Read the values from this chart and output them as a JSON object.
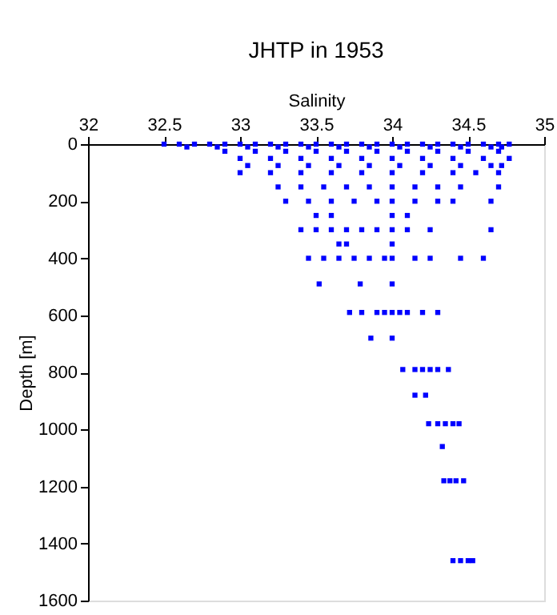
{
  "chart_data": {
    "type": "scatter",
    "title": "JHTP in 1953",
    "xlabel": "Salinity",
    "ylabel": "Depth [m]",
    "xlim": [
      32,
      35
    ],
    "xticks": [
      32,
      32.5,
      33,
      33.5,
      34,
      34.5,
      35
    ],
    "ylim": [
      1600,
      0
    ],
    "yticks": [
      0,
      200,
      400,
      600,
      800,
      1000,
      1200,
      1400,
      1600
    ],
    "marker": "square",
    "grid": false,
    "series": [
      {
        "color": "#0000ff",
        "x": [
          32.5,
          32.6,
          32.7,
          32.8,
          32.9,
          33.0,
          33.1,
          33.2,
          33.3,
          33.4,
          33.5,
          33.6,
          33.7,
          33.8,
          33.9,
          34.0,
          34.1,
          34.2,
          34.3,
          34.4,
          34.5,
          34.6,
          34.7,
          34.77,
          32.65,
          32.85,
          33.05,
          33.25,
          33.45,
          33.65,
          33.85,
          34.05,
          34.25,
          34.45,
          34.65,
          34.72,
          32.9,
          33.1,
          33.3,
          33.5,
          33.7,
          33.9,
          34.1,
          34.3,
          34.5,
          34.7,
          33.0,
          33.2,
          33.4,
          33.6,
          33.8,
          34.0,
          34.2,
          34.4,
          34.6,
          34.77,
          33.05,
          33.25,
          33.45,
          33.65,
          33.85,
          34.05,
          34.25,
          34.45,
          34.65,
          34.72,
          33.0,
          33.2,
          33.4,
          33.6,
          33.8,
          34.0,
          34.2,
          34.4,
          34.55,
          34.7,
          33.25,
          33.4,
          33.55,
          33.7,
          33.85,
          34.0,
          34.15,
          34.3,
          34.45,
          34.7,
          33.3,
          33.45,
          33.6,
          33.75,
          33.9,
          34.0,
          34.15,
          34.3,
          34.4,
          34.65,
          33.5,
          33.6,
          34.0,
          34.1,
          33.4,
          33.5,
          33.6,
          33.7,
          33.8,
          33.9,
          34.0,
          34.1,
          34.25,
          34.65,
          33.65,
          33.7,
          34.0,
          33.45,
          33.55,
          33.65,
          33.75,
          33.85,
          33.95,
          34.0,
          34.15,
          34.25,
          34.45,
          34.6,
          33.52,
          33.79,
          34.0,
          33.72,
          33.8,
          33.9,
          33.95,
          34.0,
          34.05,
          34.1,
          34.2,
          34.3,
          33.86,
          34.0,
          34.07,
          34.15,
          34.2,
          34.25,
          34.3,
          34.37,
          34.15,
          34.22,
          34.24,
          34.3,
          34.35,
          34.4,
          34.44,
          34.33,
          34.34,
          34.38,
          34.42,
          34.47,
          34.4,
          34.45,
          34.5,
          34.53
        ],
        "values": [
          0,
          0,
          0,
          0,
          0,
          0,
          0,
          0,
          0,
          0,
          0,
          0,
          0,
          0,
          0,
          0,
          0,
          0,
          0,
          0,
          0,
          0,
          0,
          0,
          10,
          10,
          10,
          10,
          10,
          10,
          10,
          10,
          10,
          10,
          10,
          10,
          25,
          25,
          25,
          25,
          25,
          25,
          25,
          25,
          25,
          25,
          50,
          50,
          50,
          50,
          50,
          50,
          50,
          50,
          50,
          50,
          75,
          75,
          75,
          75,
          75,
          75,
          75,
          75,
          75,
          75,
          100,
          100,
          100,
          100,
          100,
          100,
          100,
          100,
          100,
          100,
          150,
          150,
          150,
          150,
          150,
          150,
          150,
          150,
          150,
          150,
          200,
          200,
          200,
          200,
          200,
          200,
          200,
          200,
          200,
          200,
          250,
          250,
          250,
          250,
          300,
          300,
          300,
          300,
          300,
          300,
          300,
          300,
          300,
          300,
          350,
          350,
          350,
          400,
          400,
          400,
          400,
          400,
          400,
          400,
          400,
          400,
          400,
          400,
          490,
          490,
          490,
          590,
          590,
          590,
          590,
          590,
          590,
          590,
          590,
          590,
          680,
          680,
          790,
          790,
          790,
          790,
          790,
          790,
          880,
          880,
          980,
          980,
          980,
          980,
          980,
          1060,
          1180,
          1180,
          1180,
          1180,
          1460,
          1460,
          1460,
          1460
        ]
      }
    ]
  }
}
